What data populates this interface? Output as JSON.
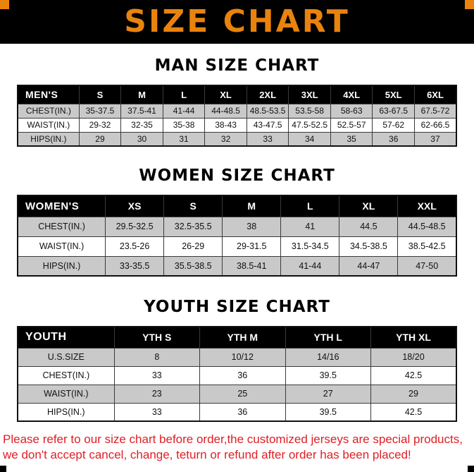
{
  "banner": {
    "title": "SIZE CHART"
  },
  "colors": {
    "accent_orange": "#E9830D",
    "stripe_gray": "#C9C9C9",
    "footer_red": "#E01E25",
    "header_black": "#000000"
  },
  "sections": [
    {
      "heading": "MAN SIZE CHART",
      "table": {
        "header": [
          "MEN'S",
          "S",
          "M",
          "L",
          "XL",
          "2XL",
          "3XL",
          "4XL",
          "5XL",
          "6XL"
        ],
        "rows": [
          {
            "label": "CHEST(IN.)",
            "values": [
              "35-37.5",
              "37.5-41",
              "41-44",
              "44-48.5",
              "48.5-53.5",
              "53.5-58",
              "58-63",
              "63-67.5",
              "67.5-72"
            ]
          },
          {
            "label": "WAIST(IN.)",
            "values": [
              "29-32",
              "32-35",
              "35-38",
              "38-43",
              "43-47.5",
              "47.5-52.5",
              "52.5-57",
              "57-62",
              "62-66.5"
            ]
          },
          {
            "label": "HIPS(IN.)",
            "values": [
              "29",
              "30",
              "31",
              "32",
              "33",
              "34",
              "35",
              "36",
              "37"
            ]
          }
        ]
      }
    },
    {
      "heading": "WOMEN SIZE CHART",
      "table": {
        "header": [
          "WOMEN'S",
          "XS",
          "S",
          "M",
          "L",
          "XL",
          "XXL"
        ],
        "rows": [
          {
            "label": "CHEST(IN.)",
            "values": [
              "29.5-32.5",
              "32.5-35.5",
              "38",
              "41",
              "44.5",
              "44.5-48.5"
            ]
          },
          {
            "label": "WAIST(IN.)",
            "values": [
              "23.5-26",
              "26-29",
              "29-31.5",
              "31.5-34.5",
              "34.5-38.5",
              "38.5-42.5"
            ]
          },
          {
            "label": "HIPS(IN.)",
            "values": [
              "33-35.5",
              "35.5-38.5",
              "38.5-41",
              "41-44",
              "44-47",
              "47-50"
            ]
          }
        ]
      }
    },
    {
      "heading": "YOUTH SIZE CHART",
      "table": {
        "header": [
          "YOUTH",
          "YTH S",
          "YTH M",
          "YTH L",
          "YTH XL"
        ],
        "rows": [
          {
            "label": "U.S.SIZE",
            "values": [
              "8",
              "10/12",
              "14/16",
              "18/20"
            ]
          },
          {
            "label": "CHEST(IN.)",
            "values": [
              "33",
              "36",
              "39.5",
              "42.5"
            ]
          },
          {
            "label": "WAIST(IN.)",
            "values": [
              "23",
              "25",
              "27",
              "29"
            ]
          },
          {
            "label": "HIPS(IN.)",
            "values": [
              "33",
              "36",
              "39.5",
              "42.5"
            ]
          }
        ]
      }
    }
  ],
  "footer": {
    "line1": "Please refer to our size chart before order,the customized jerseys are special products,",
    "line2": "we don't accept cancel, change, teturn or refund after order has been placed!"
  }
}
